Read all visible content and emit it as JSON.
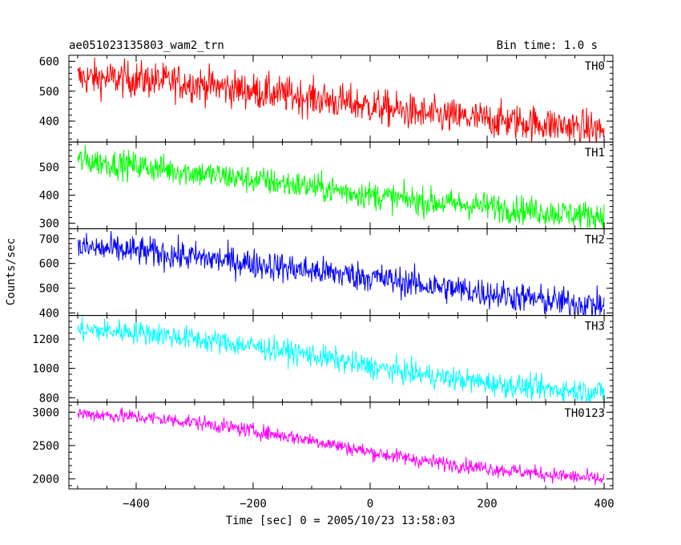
{
  "header": {
    "title": "ae051023135803_wam2_trn",
    "bin_time": "Bin time: 1.0 s"
  },
  "chart_data": {
    "type": "line",
    "title": "ae051023135803_wam2_trn",
    "subtitle": "Bin time: 1.0 s",
    "xlabel": "Time [sec] 0 = 2005/10/23 13:58:03",
    "ylabel": "Counts/sec",
    "xlim": [
      -515,
      415
    ],
    "x_ticks": [
      -400,
      -200,
      0,
      200,
      400
    ],
    "x_tick_labels": [
      "−400",
      "−200",
      "0",
      "200",
      "400"
    ],
    "grid": false,
    "series": [
      {
        "name": "TH0",
        "color": "#ff0000",
        "ylim": [
          330,
          620
        ],
        "y_ticks": [
          400,
          500,
          600
        ],
        "y_tick_labels": [
          "400",
          "500",
          "600"
        ],
        "trend": {
          "x": [
            -500,
            -400,
            -300,
            -200,
            -100,
            0,
            100,
            200,
            300,
            400
          ],
          "y": [
            545,
            540,
            525,
            500,
            478,
            450,
            420,
            405,
            390,
            370
          ]
        },
        "noise": 30
      },
      {
        "name": "TH1",
        "color": "#00ff00",
        "ylim": [
          280,
          590
        ],
        "y_ticks": [
          300,
          400,
          500
        ],
        "y_tick_labels": [
          "300",
          "400",
          "500"
        ],
        "trend": {
          "x": [
            -500,
            -400,
            -300,
            -200,
            -100,
            0,
            100,
            200,
            300,
            400
          ],
          "y": [
            525,
            505,
            480,
            455,
            430,
            400,
            375,
            360,
            340,
            325
          ]
        },
        "noise": 25
      },
      {
        "name": "TH2",
        "color": "#0000ff",
        "ylim": [
          390,
          740
        ],
        "y_ticks": [
          400,
          500,
          600,
          700
        ],
        "y_tick_labels": [
          "400",
          "500",
          "600",
          "700"
        ],
        "trend": {
          "x": [
            -500,
            -400,
            -300,
            -200,
            -100,
            0,
            100,
            200,
            300,
            400
          ],
          "y": [
            665,
            650,
            625,
            600,
            570,
            545,
            510,
            480,
            450,
            430
          ]
        },
        "noise": 30
      },
      {
        "name": "TH3",
        "color": "#00ffff",
        "ylim": [
          770,
          1360
        ],
        "y_ticks": [
          800,
          1000,
          1200
        ],
        "y_tick_labels": [
          "800",
          "1000",
          "1200"
        ],
        "trend": {
          "x": [
            -500,
            -400,
            -300,
            -200,
            -100,
            0,
            100,
            200,
            300,
            400
          ],
          "y": [
            1260,
            1250,
            1200,
            1150,
            1090,
            1010,
            950,
            900,
            860,
            840
          ]
        },
        "noise": 40
      },
      {
        "name": "TH0123",
        "color": "#ff00ff",
        "ylim": [
          1850,
          3150
        ],
        "y_ticks": [
          2000,
          2500,
          3000
        ],
        "y_tick_labels": [
          "2000",
          "2500",
          "3000"
        ],
        "trend": {
          "x": [
            -500,
            -400,
            -300,
            -200,
            -100,
            0,
            100,
            200,
            300,
            400
          ],
          "y": [
            2980,
            2930,
            2850,
            2720,
            2580,
            2400,
            2260,
            2160,
            2070,
            1990
          ]
        },
        "noise": 55
      }
    ]
  }
}
